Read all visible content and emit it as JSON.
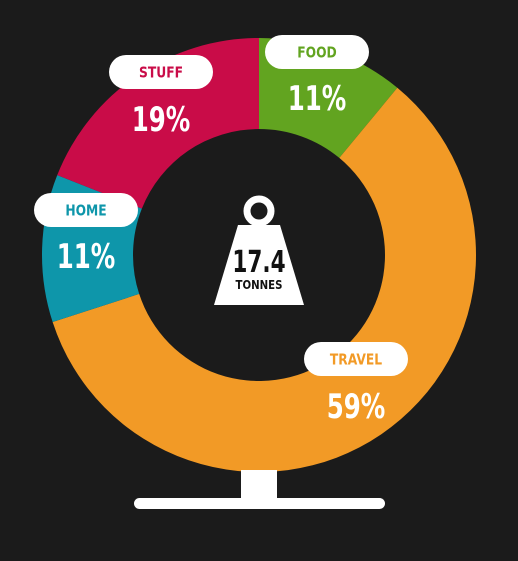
{
  "chart_data": {
    "type": "pie",
    "categories": [
      "FOOD",
      "TRAVEL",
      "HOME",
      "STUFF"
    ],
    "values": [
      11,
      59,
      11,
      19
    ],
    "labels": [
      "11%",
      "59%",
      "11%",
      "19%"
    ],
    "colors": [
      "#62a420",
      "#f29a26",
      "#0e96aa",
      "#c90c48"
    ],
    "center_value": "17.4",
    "center_unit": "TONNES"
  }
}
